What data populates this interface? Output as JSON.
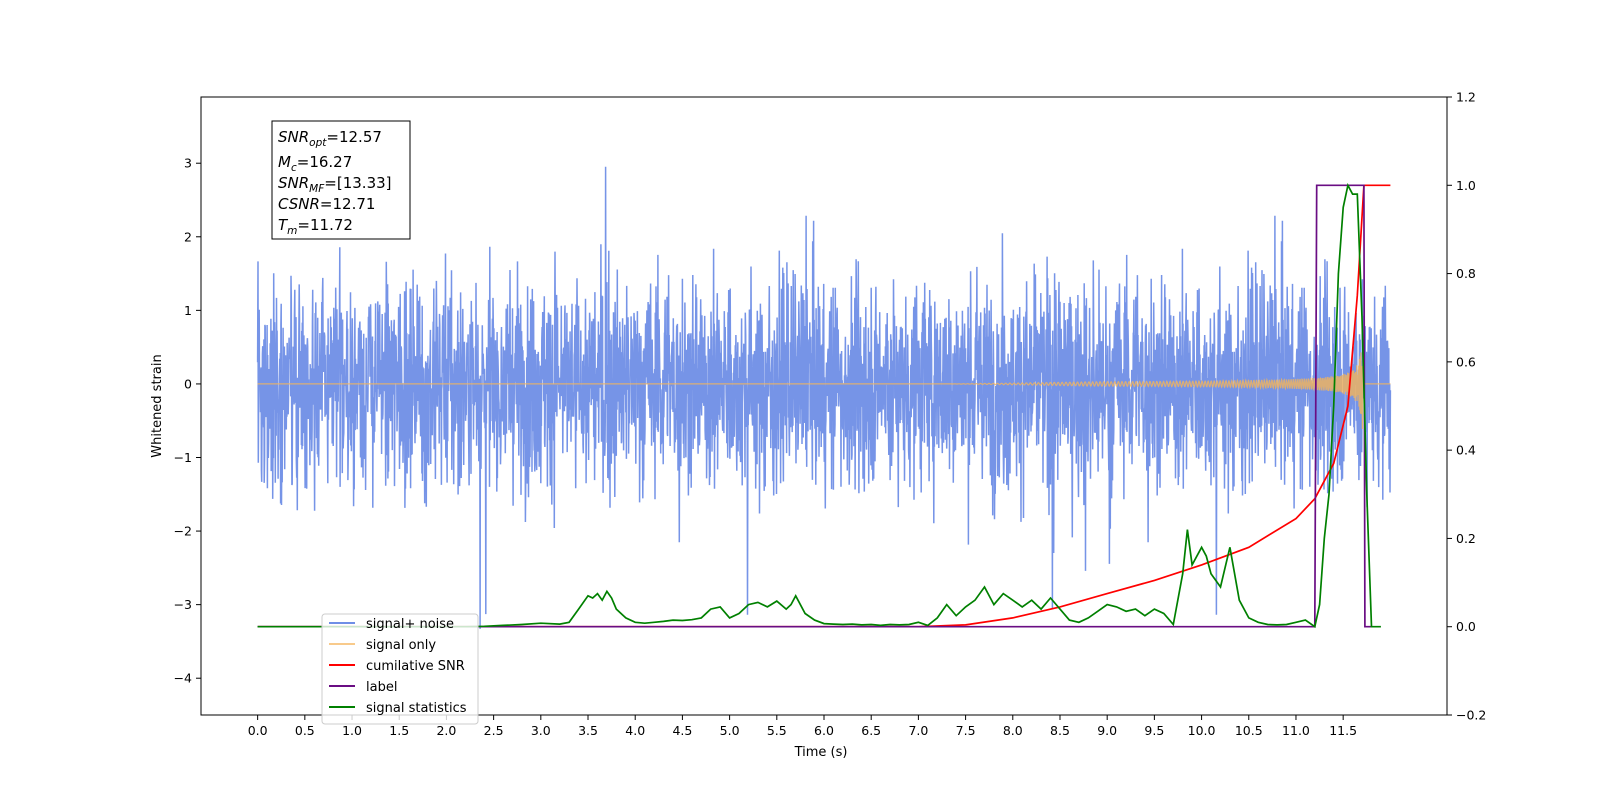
{
  "chart_data": {
    "type": "line",
    "title": "",
    "xlabel": "Time (s)",
    "ylabel": "Whitened strain",
    "y2label": "",
    "xlim": [
      -0.6,
      12.6
    ],
    "ylim": [
      -4.5,
      3.9
    ],
    "y2lim": [
      -0.2,
      1.2
    ],
    "x_ticks": [
      "0.0",
      "0.5",
      "1.0",
      "1.5",
      "2.0",
      "2.5",
      "3.0",
      "3.5",
      "4.0",
      "4.5",
      "5.0",
      "5.5",
      "6.0",
      "6.5",
      "7.0",
      "7.5",
      "8.0",
      "8.5",
      "9.0",
      "9.5",
      "10.0",
      "10.5",
      "11.0",
      "11.5"
    ],
    "y_ticks": [
      "3",
      "2",
      "1",
      "0",
      "−1",
      "−2",
      "−3",
      "−4"
    ],
    "y2_ticks": [
      "1.2",
      "1.0",
      "0.8",
      "0.6",
      "0.4",
      "0.2",
      "0.0",
      "−0.2"
    ],
    "grid": false,
    "legend_position": "lower-left",
    "annotation": {
      "snr_opt": "12.57",
      "mc": "16.27",
      "snr_mf": "[13.33]",
      "csnr": "12.71",
      "tm": "11.72"
    },
    "series": [
      {
        "name": "signal+ noise",
        "axis": "left",
        "color": "#6f8ee6",
        "description_range": [
          -1.8,
          1.8
        ],
        "x_start": 0.0,
        "x_end": 12.0
      },
      {
        "name": "signal only",
        "axis": "left",
        "color": "#f5b45a",
        "description_range": [
          0,
          0.62
        ],
        "x_start": 0.0,
        "x_end": 12.0
      },
      {
        "name": "cumilative SNR",
        "axis": "right",
        "color": "#ff0000",
        "x": [
          0.0,
          7.0,
          7.5,
          8.0,
          8.5,
          9.0,
          9.5,
          10.0,
          10.5,
          11.0,
          11.2,
          11.4,
          11.55,
          11.65,
          11.72,
          12.0
        ],
        "values": [
          0.0,
          0.0,
          0.004,
          0.02,
          0.045,
          0.075,
          0.105,
          0.14,
          0.18,
          0.245,
          0.29,
          0.37,
          0.5,
          0.75,
          1.0,
          1.0
        ]
      },
      {
        "name": "label",
        "axis": "right",
        "color": "#6a0d83",
        "x": [
          0.0,
          11.2,
          11.22,
          11.72,
          11.73,
          11.8
        ],
        "values": [
          0.0,
          0.0,
          1.0,
          1.0,
          0.0,
          0.0
        ]
      },
      {
        "name": "signal statistics",
        "axis": "right",
        "color": "#008000",
        "x": [
          0.0,
          2.2,
          2.4,
          2.6,
          2.8,
          3.0,
          3.2,
          3.3,
          3.4,
          3.5,
          3.55,
          3.6,
          3.65,
          3.7,
          3.75,
          3.8,
          3.9,
          4.0,
          4.1,
          4.2,
          4.3,
          4.4,
          4.5,
          4.6,
          4.7,
          4.8,
          4.9,
          5.0,
          5.1,
          5.2,
          5.3,
          5.4,
          5.5,
          5.6,
          5.65,
          5.7,
          5.8,
          5.9,
          6.0,
          6.1,
          6.2,
          6.3,
          6.4,
          6.5,
          6.6,
          6.7,
          6.8,
          6.9,
          7.0,
          7.1,
          7.2,
          7.3,
          7.4,
          7.5,
          7.6,
          7.7,
          7.8,
          7.9,
          8.0,
          8.1,
          8.2,
          8.3,
          8.4,
          8.5,
          8.6,
          8.7,
          8.8,
          8.9,
          9.0,
          9.1,
          9.2,
          9.3,
          9.4,
          9.5,
          9.6,
          9.7,
          9.8,
          9.85,
          9.9,
          10.0,
          10.05,
          10.1,
          10.2,
          10.3,
          10.4,
          10.5,
          10.6,
          10.7,
          10.8,
          10.9,
          11.0,
          11.1,
          11.2,
          11.25,
          11.3,
          11.35,
          11.4,
          11.45,
          11.5,
          11.55,
          11.6,
          11.65,
          11.7,
          11.75,
          11.8,
          11.9
        ],
        "values": [
          0.0,
          0.0,
          0.001,
          0.003,
          0.005,
          0.008,
          0.006,
          0.01,
          0.04,
          0.07,
          0.065,
          0.075,
          0.06,
          0.08,
          0.065,
          0.04,
          0.02,
          0.01,
          0.008,
          0.01,
          0.012,
          0.015,
          0.014,
          0.016,
          0.02,
          0.04,
          0.045,
          0.02,
          0.03,
          0.05,
          0.055,
          0.045,
          0.058,
          0.04,
          0.05,
          0.07,
          0.03,
          0.015,
          0.007,
          0.006,
          0.005,
          0.006,
          0.004,
          0.005,
          0.003,
          0.005,
          0.004,
          0.005,
          0.01,
          0.003,
          0.02,
          0.05,
          0.025,
          0.045,
          0.06,
          0.09,
          0.05,
          0.075,
          0.06,
          0.045,
          0.06,
          0.04,
          0.065,
          0.04,
          0.015,
          0.01,
          0.02,
          0.035,
          0.05,
          0.045,
          0.035,
          0.04,
          0.025,
          0.04,
          0.03,
          0.005,
          0.12,
          0.22,
          0.14,
          0.18,
          0.16,
          0.12,
          0.09,
          0.18,
          0.06,
          0.02,
          0.01,
          0.005,
          0.004,
          0.005,
          0.01,
          0.015,
          0.0,
          0.05,
          0.2,
          0.3,
          0.5,
          0.8,
          0.95,
          1.0,
          0.98,
          0.98,
          0.7,
          0.3,
          0.0,
          0.0
        ]
      }
    ]
  }
}
